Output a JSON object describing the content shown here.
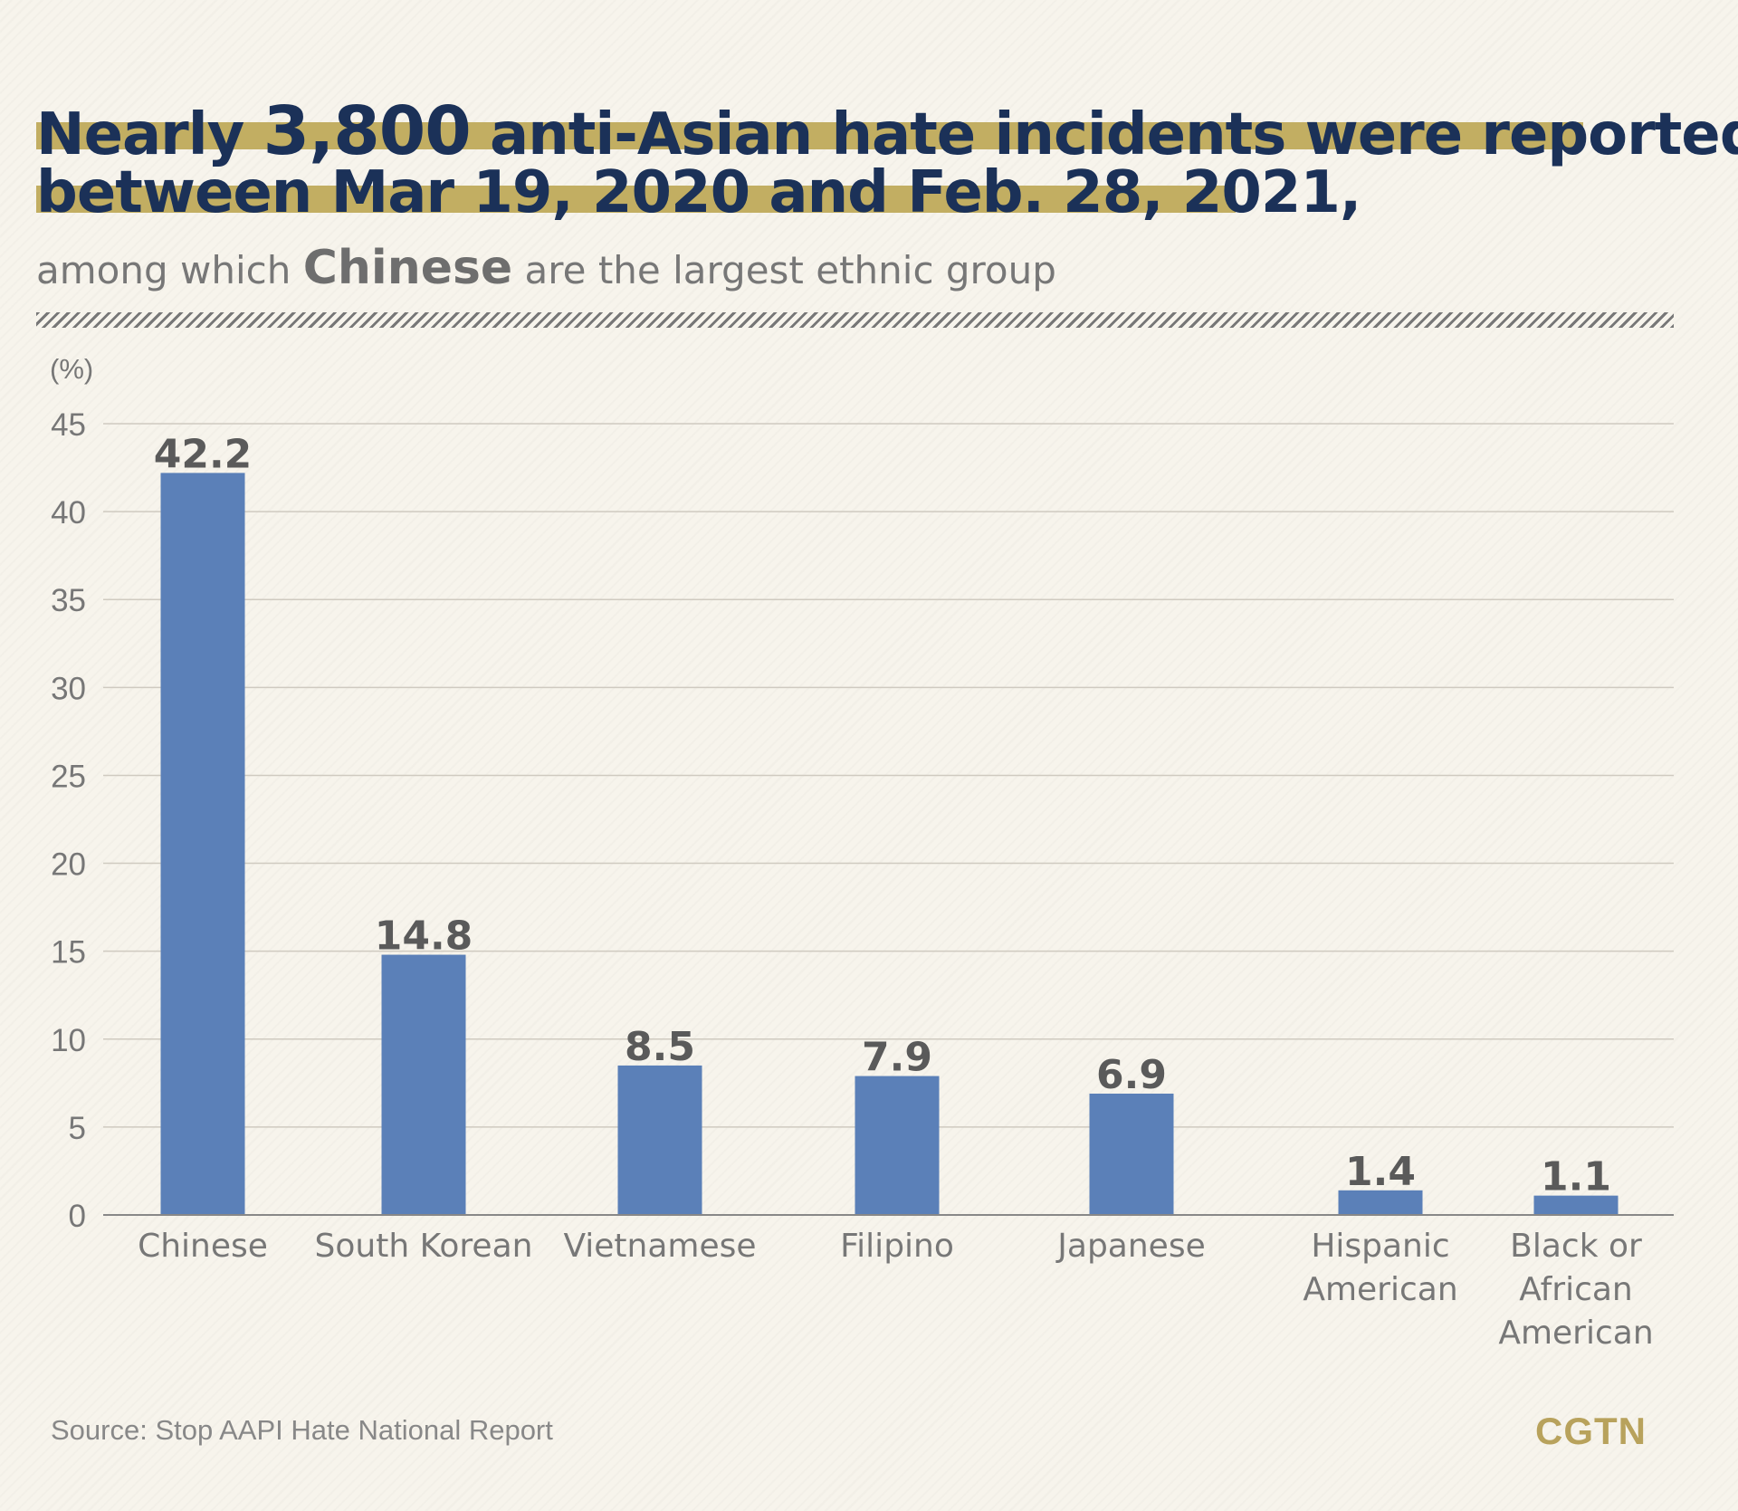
{
  "title": {
    "line1_pre": "Nearly ",
    "line1_number": "3,800",
    "line1_post": " anti-Asian hate incidents were reported",
    "line2": "between Mar 19, 2020 and Feb. 28, 2021,"
  },
  "subtitle": {
    "pre": "among which ",
    "highlight": "Chinese",
    "post": " are the largest ethnic group"
  },
  "source": "Source: Stop AAPI Hate National Report",
  "logo": "CGTN",
  "colors": {
    "background": "#f7f4ec",
    "title": "#1b3158",
    "highlight": "#c2ae62",
    "bar": "#5b80b8",
    "logo": "#b8a25c"
  },
  "chart_data": {
    "type": "bar",
    "ylabel": "(%)",
    "ylim": [
      0,
      45
    ],
    "yticks": [
      0,
      5,
      10,
      15,
      20,
      25,
      30,
      35,
      40,
      45
    ],
    "grid": true,
    "categories": [
      [
        "Chinese"
      ],
      [
        "South Korean"
      ],
      [
        "Vietnamese"
      ],
      [
        "Filipino"
      ],
      [
        "Japanese"
      ],
      [
        "Hispanic",
        "American"
      ],
      [
        "Black or",
        "African",
        "American"
      ]
    ],
    "values": [
      42.2,
      14.8,
      8.5,
      7.9,
      6.9,
      1.4,
      1.1
    ],
    "data_labels": [
      "42.2",
      "14.8",
      "8.5",
      "7.9",
      "6.9",
      "1.4",
      "1.1"
    ]
  }
}
